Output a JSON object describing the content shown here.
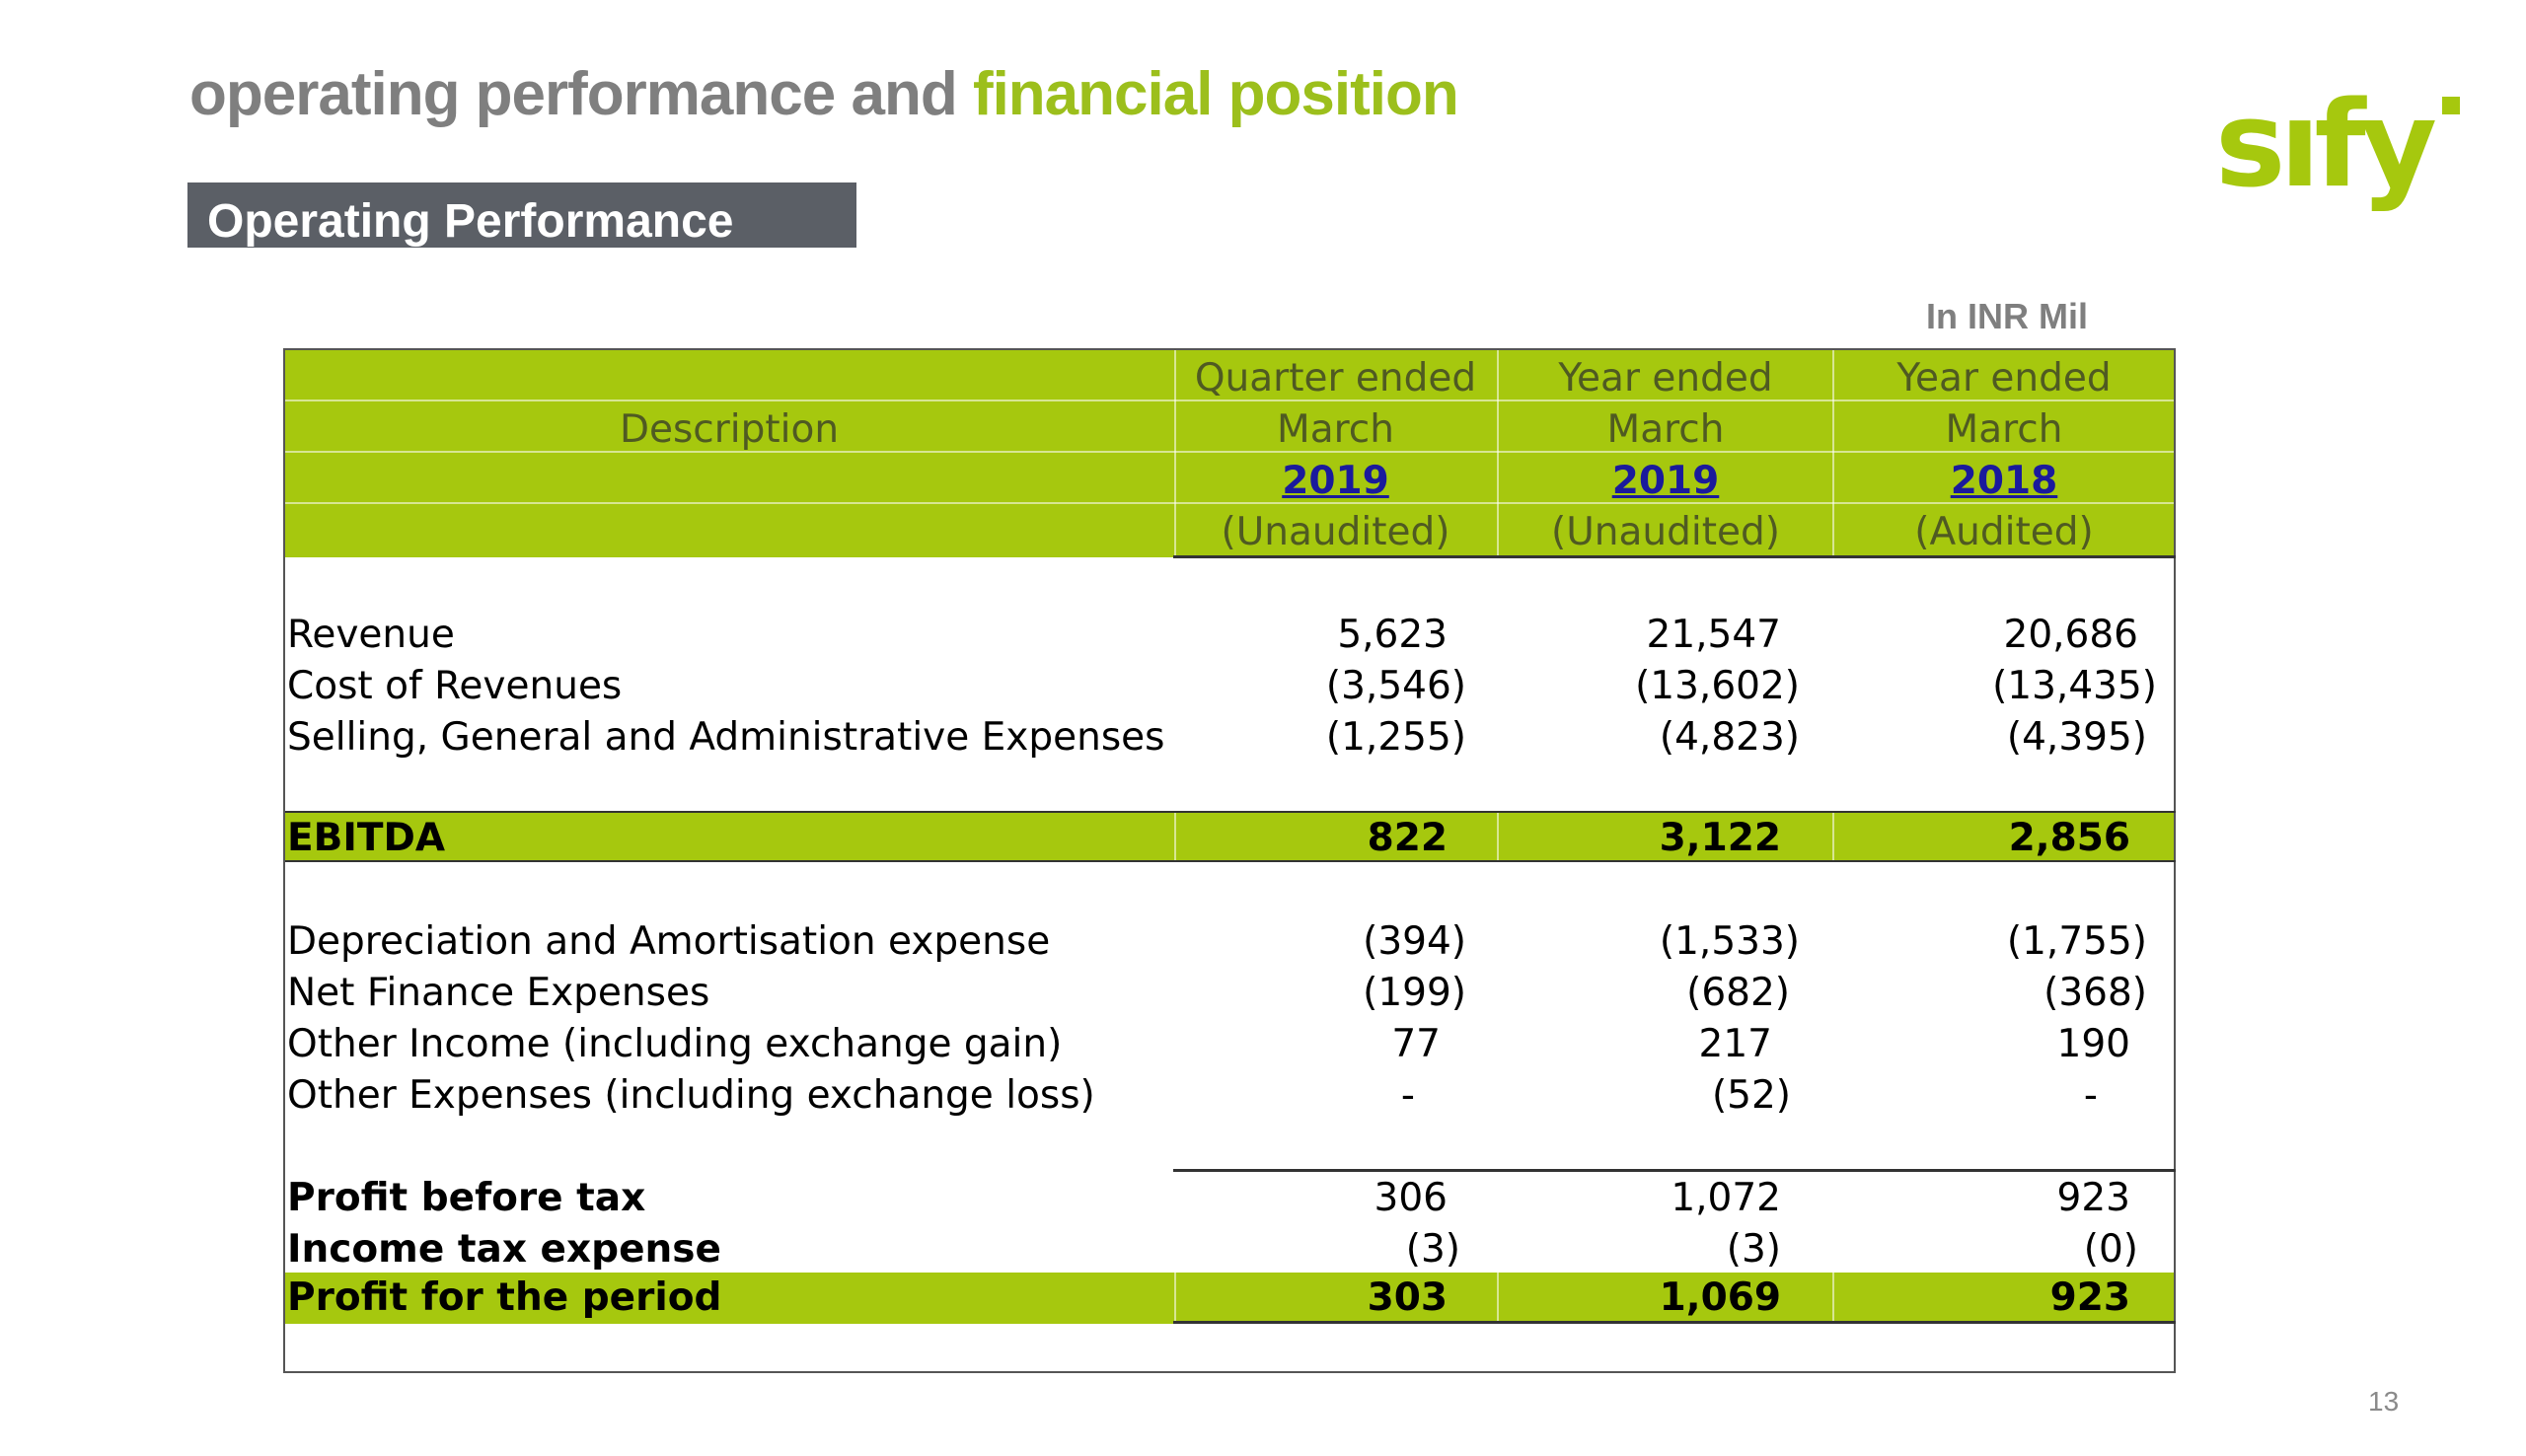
{
  "title": {
    "part1": "operating performance and ",
    "part2": "financial position"
  },
  "logo_text": "sify",
  "section": "Operating Performance",
  "units": "In INR Mil",
  "table": {
    "description_header": "Description",
    "columns": [
      {
        "line1": "Quarter ended",
        "line2": "March",
        "year": "2019",
        "status": "(Unaudited)"
      },
      {
        "line1": "Year ended",
        "line2": "March",
        "year": "2019",
        "status": "(Unaudited)"
      },
      {
        "line1": "Year ended",
        "line2": "March",
        "year": "2018",
        "status": "(Audited)"
      }
    ],
    "rows": [
      {
        "label": "Revenue",
        "values": [
          "5,623",
          "21,547",
          "20,686"
        ]
      },
      {
        "label": "Cost of Revenues",
        "values": [
          "(3,546)",
          "(13,602)",
          "(13,435)"
        ]
      },
      {
        "label": "Selling, General and Administrative  Expenses",
        "values": [
          "(1,255)",
          "(4,823)",
          "(4,395)"
        ]
      },
      {
        "label": "EBITDA",
        "values": [
          "822",
          "3,122",
          "2,856"
        ]
      },
      {
        "label": "Depreciation and Amortisation expense",
        "values": [
          "(394)",
          "(1,533)",
          "(1,755)"
        ]
      },
      {
        "label": "Net Finance Expenses",
        "values": [
          "(199)",
          "(682)",
          "(368)"
        ]
      },
      {
        "label": "Other Income (including exchange gain)",
        "values": [
          "77",
          "217",
          "190"
        ]
      },
      {
        "label": "Other Expenses (including exchange loss)",
        "values": [
          "-",
          "(52)",
          "-"
        ]
      },
      {
        "label": "Profit before tax",
        "values": [
          "306",
          "1,072",
          "923"
        ]
      },
      {
        "label": "Income tax expense",
        "values": [
          "(3)",
          "(3)",
          "(0)"
        ]
      },
      {
        "label": "Profit for the period",
        "values": [
          "303",
          "1,069",
          "923"
        ]
      }
    ]
  },
  "page_number": "13",
  "colors": {
    "accent_green": "#a6c80e",
    "title_grey": "#7f7f7f",
    "section_bar": "#5b5f66",
    "link_blue": "#1a1a9c"
  }
}
